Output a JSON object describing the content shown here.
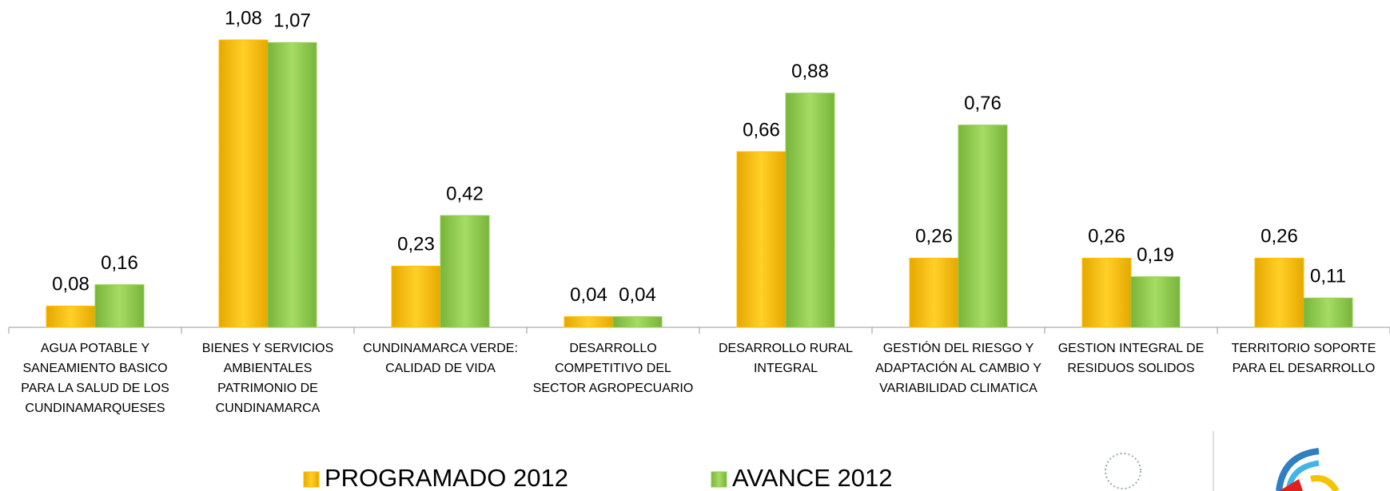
{
  "chart_data": {
    "type": "bar",
    "categories": [
      "AGUA POTABLE Y SANEAMIENTO BASICO PARA LA SALUD DE LOS CUNDINAMARQUESES",
      "BIENES Y SERVICIOS AMBIENTALES PATRIMONIO DE CUNDINAMARCA",
      "CUNDINAMARCA VERDE: CALIDAD DE VIDA",
      "DESARROLLO COMPETITIVO DEL SECTOR AGROPECUARIO",
      "DESARROLLO RURAL INTEGRAL",
      "GESTIÓN DEL RIESGO Y ADAPTACIÓN AL CAMBIO Y VARIABILIDAD CLIMATICA",
      "GESTION INTEGRAL DE RESIDUOS SOLIDOS",
      "TERRITORIO SOPORTE PARA EL DESARROLLO"
    ],
    "series": [
      {
        "name": "PROGRAMADO 2012",
        "color": "#FFC000",
        "values": [
          0.08,
          1.08,
          0.23,
          0.04,
          0.66,
          0.26,
          0.26,
          0.26
        ],
        "value_labels": [
          "0,08",
          "1,08",
          "0,23",
          "0,04",
          "0,66",
          "0,26",
          "0,26",
          "0,26"
        ]
      },
      {
        "name": "AVANCE 2012",
        "color": "#92D050",
        "values": [
          0.16,
          1.07,
          0.42,
          0.04,
          0.88,
          0.76,
          0.19,
          0.11
        ],
        "value_labels": [
          "0,16",
          "1,07",
          "0,42",
          "0,04",
          "0,88",
          "0,76",
          "0,19",
          "0,11"
        ]
      }
    ]
  }
}
